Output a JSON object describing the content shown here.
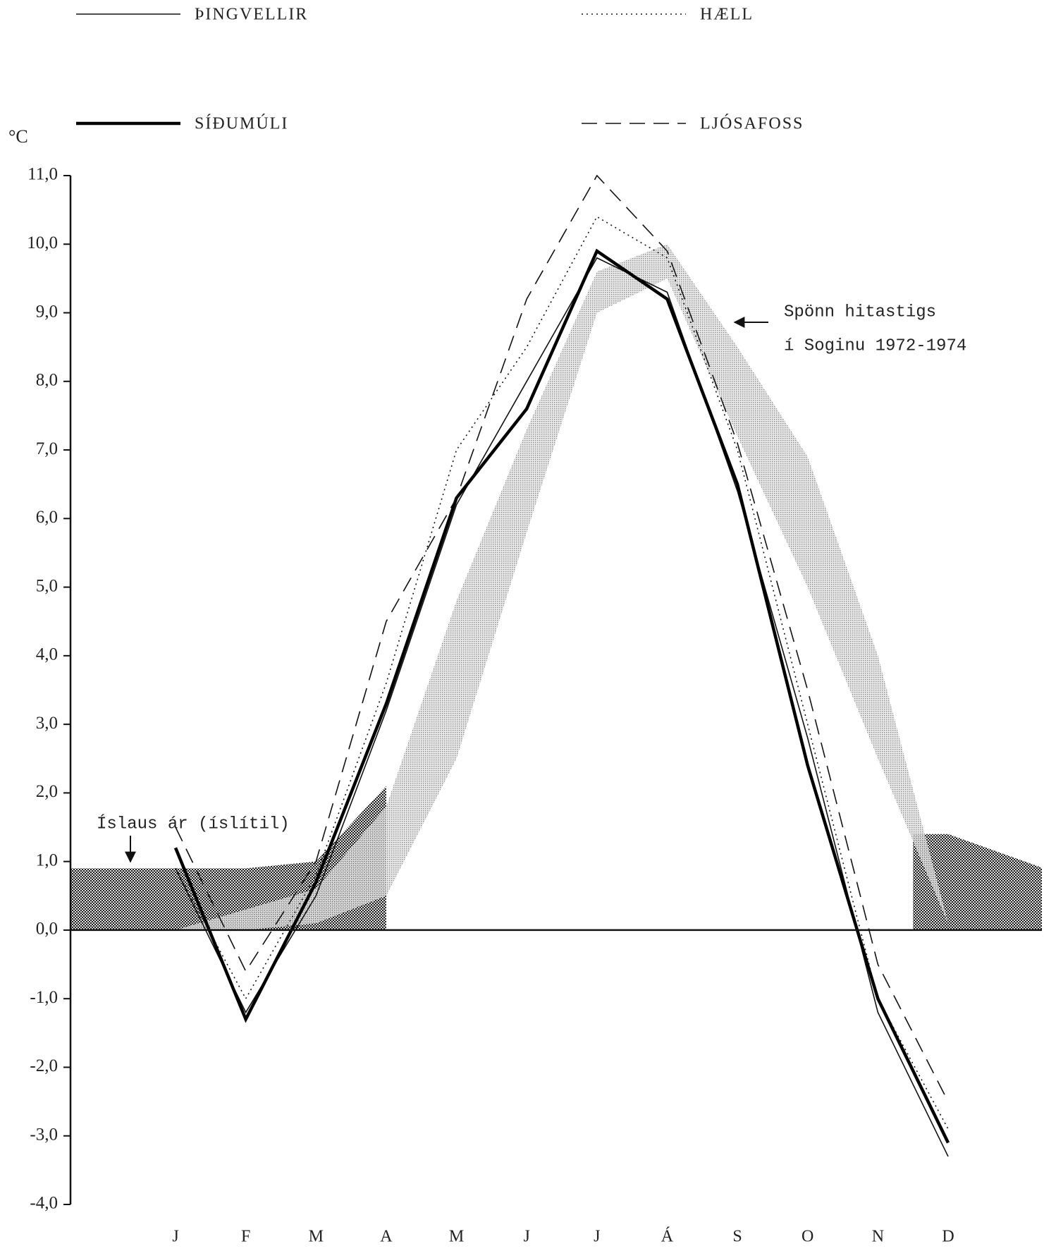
{
  "chart_data": {
    "type": "line",
    "y_label": "°C",
    "categories": [
      "J",
      "F",
      "M",
      "A",
      "M",
      "J",
      "J",
      "Á",
      "S",
      "O",
      "N",
      "D"
    ],
    "series": [
      {
        "name": "ÞINGVELLIR",
        "color": "#111111",
        "style": "solid",
        "width": 1.6,
        "values": [
          0.9,
          -1.2,
          0.5,
          3.2,
          6.2,
          8.0,
          9.8,
          9.3,
          6.4,
          2.8,
          -1.2,
          -3.3
        ]
      },
      {
        "name": "HÆLL",
        "color": "#111111",
        "style": "dotted",
        "width": 1.6,
        "values": [
          0.9,
          -1.0,
          0.8,
          3.6,
          7.0,
          8.5,
          10.4,
          9.8,
          7.0,
          3.0,
          -1.0,
          -2.9
        ]
      },
      {
        "name": "SÍÐUMÚLI",
        "color": "#000000",
        "style": "solid",
        "width": 4.5,
        "values": [
          1.2,
          -1.3,
          0.7,
          3.3,
          6.3,
          7.6,
          9.9,
          9.2,
          6.5,
          2.4,
          -1.0,
          -3.1
        ]
      },
      {
        "name": "LJÓSAFOSS",
        "color": "#111111",
        "style": "dashed",
        "width": 1.6,
        "values": [
          1.5,
          -0.6,
          1.0,
          4.5,
          6.3,
          9.2,
          11.0,
          9.9,
          7.1,
          3.5,
          -0.5,
          -2.5
        ]
      }
    ],
    "bands": [
      {
        "name": "Íslaus ár (íslítil)",
        "fill": "dark",
        "lower": [
          0,
          0,
          0,
          0,
          null,
          null,
          null,
          null,
          null,
          null,
          null,
          0
        ],
        "upper": [
          0.9,
          0.9,
          1.0,
          2.1,
          null,
          null,
          null,
          null,
          null,
          null,
          null,
          1.4
        ]
      },
      {
        "name": "Spönn hitastigs í Soginu 1972-1974",
        "fill": "light",
        "lower": [
          0,
          0,
          0.1,
          0.5,
          2.5,
          5.8,
          9.0,
          9.5,
          7.2,
          5.0,
          2.5,
          0.1
        ],
        "upper": [
          0,
          0.3,
          0.6,
          1.8,
          4.8,
          7.3,
          9.6,
          10.0,
          8.5,
          6.9,
          4.0,
          0.1
        ]
      }
    ],
    "annotations": [
      "Spönn hitastigs",
      "í Soginu 1972-1974",
      "Íslaus ár (íslítil)"
    ],
    "ylim": [
      -4,
      11
    ],
    "yticks": [
      {
        "value": 11,
        "label": "11,0"
      },
      {
        "value": 10,
        "label": "10,0"
      },
      {
        "value": 9,
        "label": "9,0"
      },
      {
        "value": 8,
        "label": "8,0"
      },
      {
        "value": 7,
        "label": "7,0"
      },
      {
        "value": 6,
        "label": "6,0"
      },
      {
        "value": 5,
        "label": "5,0"
      },
      {
        "value": 4,
        "label": "4,0"
      },
      {
        "value": 3,
        "label": "3,0"
      },
      {
        "value": 2,
        "label": "2,0"
      },
      {
        "value": 1,
        "label": "1,0"
      },
      {
        "value": 0,
        "label": "0,0"
      },
      {
        "value": -1,
        "label": "-1,0"
      },
      {
        "value": -2,
        "label": "-2,0"
      },
      {
        "value": -3,
        "label": "-3,0"
      },
      {
        "value": -4,
        "label": "-4,0"
      }
    ]
  }
}
